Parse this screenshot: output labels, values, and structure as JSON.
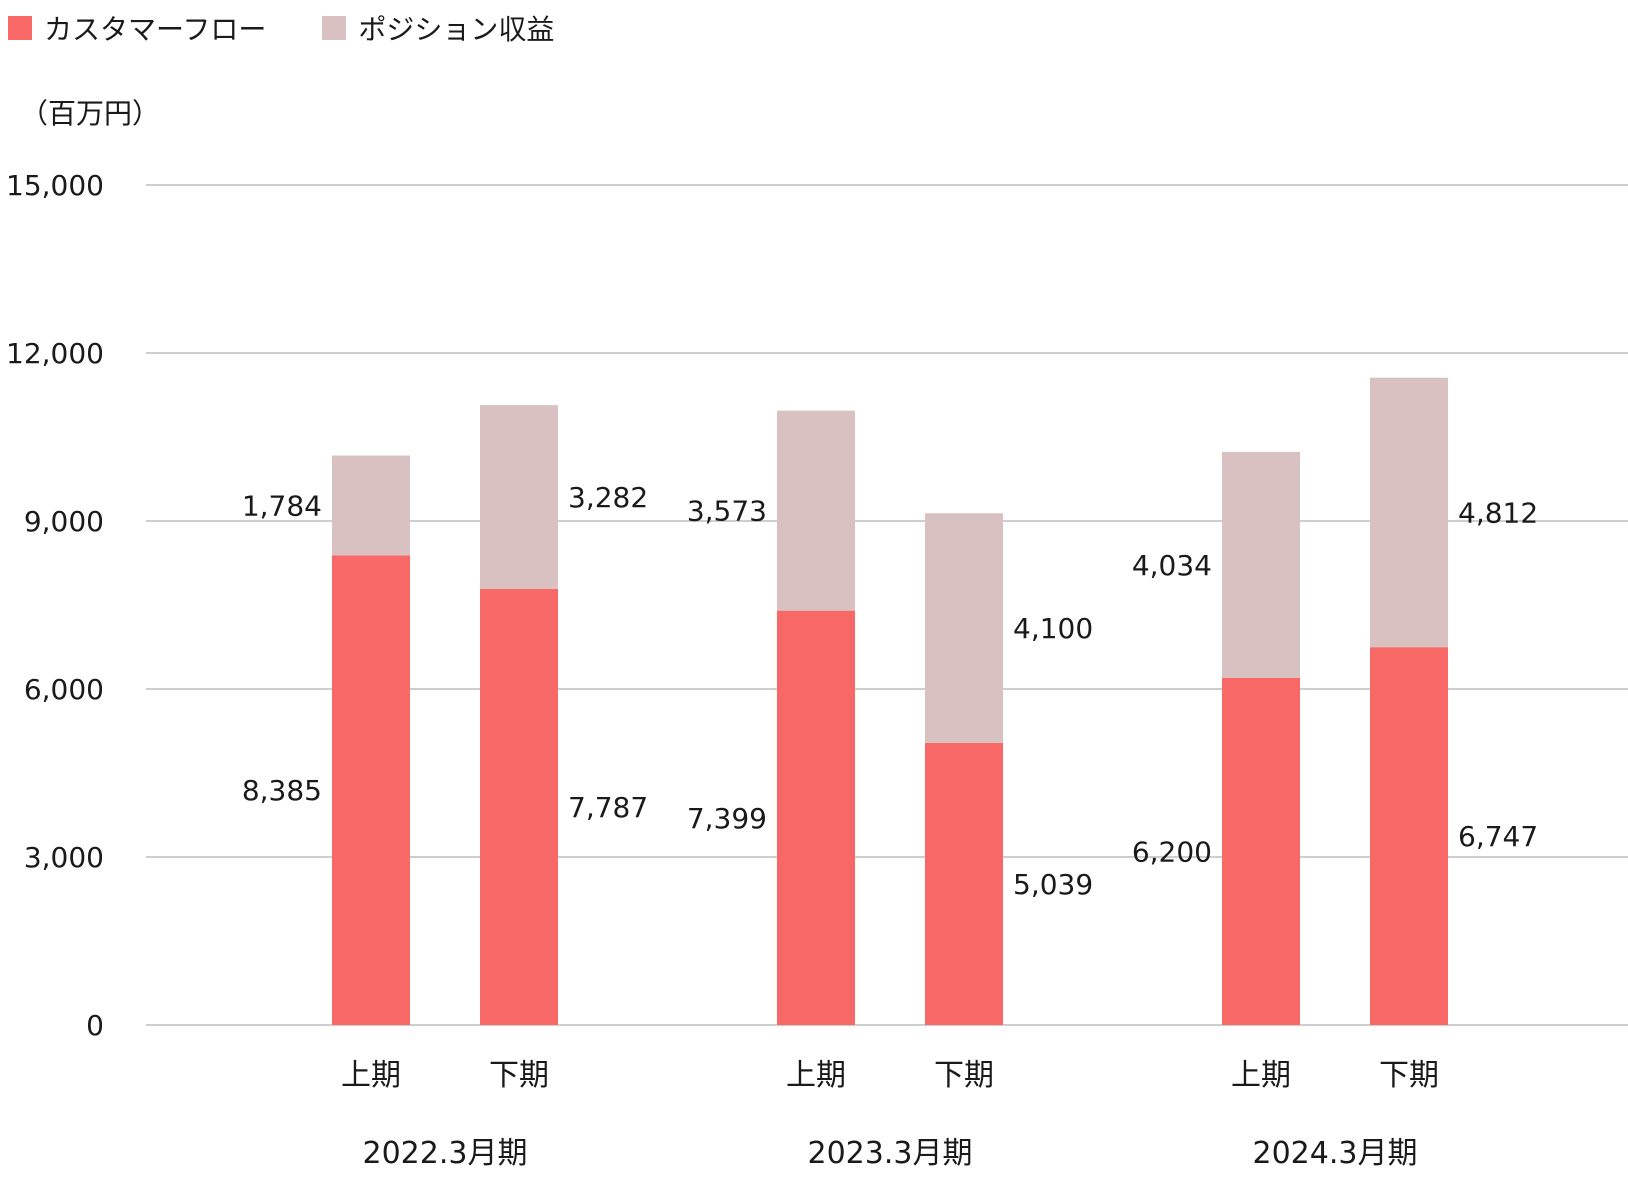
{
  "chart_data": {
    "type": "bar",
    "stacked": true,
    "unit_label": "（百万円）",
    "ylim": [
      0,
      15000
    ],
    "yticks": [
      0,
      3000,
      6000,
      9000,
      12000,
      15000
    ],
    "ytick_labels": [
      "0",
      "3,000",
      "6,000",
      "9,000",
      "12,000",
      "15,000"
    ],
    "grid": true,
    "legend_position": "top-left",
    "groups": [
      {
        "label": "2022.3月期",
        "categories": [
          "上期",
          "下期"
        ]
      },
      {
        "label": "2023.3月期",
        "categories": [
          "上期",
          "下期"
        ]
      },
      {
        "label": "2024.3月期",
        "categories": [
          "上期",
          "下期"
        ]
      }
    ],
    "series": [
      {
        "name": "カスタマーフロー",
        "color": "#f76866",
        "values": [
          8385,
          7787,
          7399,
          5039,
          6200,
          6747
        ],
        "labels": [
          "8,385",
          "7,787",
          "7,399",
          "5,039",
          "6,200",
          "6,747"
        ]
      },
      {
        "name": "ポジション収益",
        "color": "#d8c1c0",
        "values": [
          1784,
          3282,
          3573,
          4100,
          4034,
          4812
        ],
        "labels": [
          "1,784",
          "3,282",
          "3,573",
          "4,100",
          "4,034",
          "4,812"
        ]
      }
    ]
  }
}
